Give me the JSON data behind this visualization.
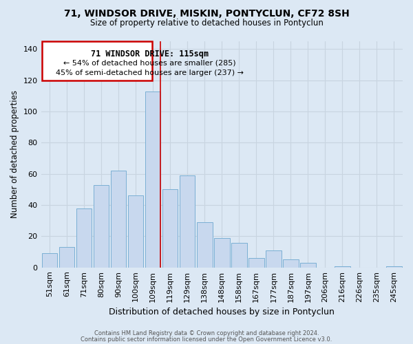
{
  "title": "71, WINDSOR DRIVE, MISKIN, PONTYCLUN, CF72 8SH",
  "subtitle": "Size of property relative to detached houses in Pontyclun",
  "xlabel": "Distribution of detached houses by size in Pontyclun",
  "ylabel": "Number of detached properties",
  "footer1": "Contains HM Land Registry data © Crown copyright and database right 2024.",
  "footer2": "Contains public sector information licensed under the Open Government Licence v3.0.",
  "bar_color": "#c8d8ee",
  "bar_edge_color": "#7aafd4",
  "annotation_title": "71 WINDSOR DRIVE: 115sqm",
  "annotation_line1": "← 54% of detached houses are smaller (285)",
  "annotation_line2": "45% of semi-detached houses are larger (237) →",
  "annotation_box_color": "#ffffff",
  "annotation_box_edge": "#cc0000",
  "vline_color": "#cc0000",
  "grid_color": "#c8d4e0",
  "background_color": "#dce8f4",
  "plot_bg_color": "#dce8f4",
  "categories": [
    "51sqm",
    "61sqm",
    "71sqm",
    "80sqm",
    "90sqm",
    "100sqm",
    "109sqm",
    "119sqm",
    "129sqm",
    "138sqm",
    "148sqm",
    "158sqm",
    "167sqm",
    "177sqm",
    "187sqm",
    "197sqm",
    "206sqm",
    "216sqm",
    "226sqm",
    "235sqm",
    "245sqm"
  ],
  "values": [
    9,
    13,
    38,
    53,
    62,
    46,
    113,
    50,
    59,
    29,
    19,
    16,
    6,
    11,
    5,
    3,
    0,
    1,
    0,
    0,
    1
  ],
  "vline_x_index": 6,
  "ylim": [
    0,
    145
  ],
  "yticks": [
    0,
    20,
    40,
    60,
    80,
    100,
    120,
    140
  ]
}
